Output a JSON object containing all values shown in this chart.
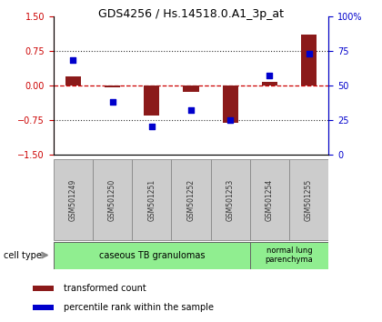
{
  "title": "GDS4256 / Hs.14518.0.A1_3p_at",
  "samples": [
    "GSM501249",
    "GSM501250",
    "GSM501251",
    "GSM501252",
    "GSM501253",
    "GSM501254",
    "GSM501255"
  ],
  "transformed_count": [
    0.2,
    -0.04,
    -0.65,
    -0.15,
    -0.82,
    0.07,
    1.1
  ],
  "percentile_rank": [
    68,
    38,
    20,
    32,
    25,
    57,
    73
  ],
  "ylim_left": [
    -1.5,
    1.5
  ],
  "ylim_right": [
    0,
    100
  ],
  "yticks_left": [
    -1.5,
    -0.75,
    0,
    0.75,
    1.5
  ],
  "yticks_right": [
    0,
    25,
    50,
    75,
    100
  ],
  "bar_color": "#8B1A1A",
  "square_color": "#0000CC",
  "zero_line_color": "#CC0000",
  "dotted_line_color": "#333333",
  "group1_label": "caseous TB granulomas",
  "group1_n": 5,
  "group2_label": "normal lung\nparenchyma",
  "group2_n": 2,
  "group_color": "#90EE90",
  "label_bg_color": "#CCCCCC",
  "legend_label1": "transformed count",
  "legend_label2": "percentile rank within the sample",
  "tick_color_left": "#CC0000",
  "tick_color_right": "#0000CC",
  "title_fontsize": 9,
  "tick_fontsize": 7,
  "bar_width": 0.4
}
